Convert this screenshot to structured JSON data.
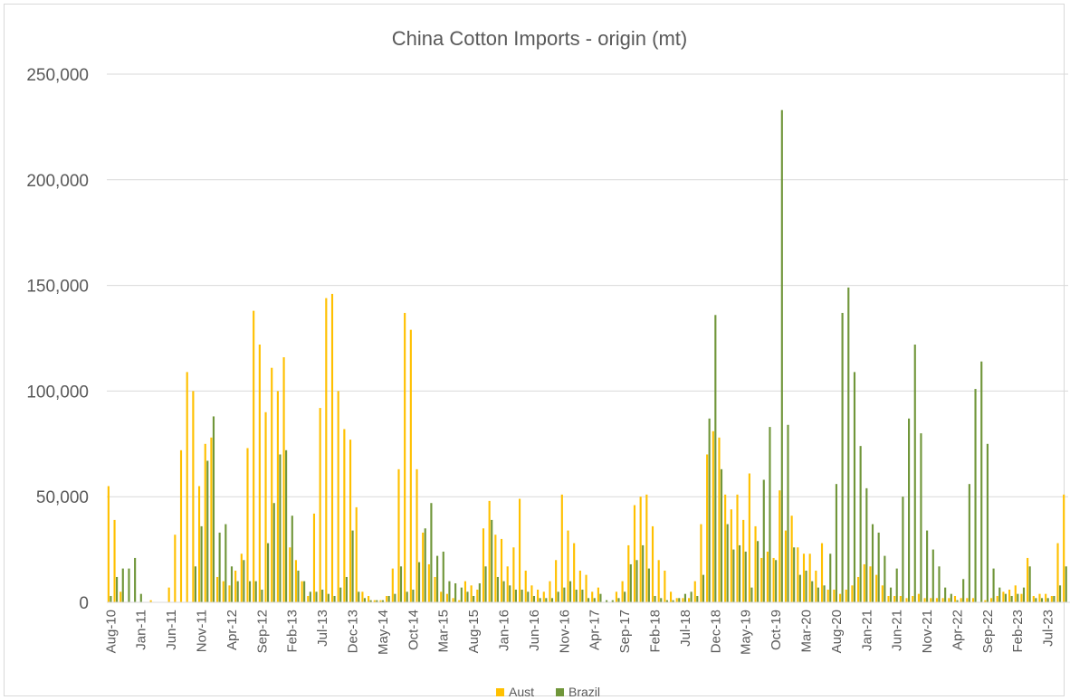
{
  "chart_data": {
    "type": "bar",
    "title": "China Cotton Imports - origin (mt)",
    "xlabel": "",
    "ylabel": "",
    "ylim": [
      0,
      250000
    ],
    "y_ticks": [
      0,
      50000,
      100000,
      150000,
      200000,
      250000
    ],
    "y_tick_labels": [
      "0",
      "50,000",
      "100,000",
      "150,000",
      "200,000",
      "250,000"
    ],
    "grid": true,
    "legend_position": "bottom",
    "start_month": "Aug-10",
    "end_month": "Jul-23",
    "x_tick_labels": [
      "Aug-10",
      "Jan-11",
      "Jun-11",
      "Nov-11",
      "Apr-12",
      "Sep-12",
      "Feb-13",
      "Jul-13",
      "Dec-13",
      "May-14",
      "Oct-14",
      "Mar-15",
      "Aug-15",
      "Jan-16",
      "Jun-16",
      "Nov-16",
      "Apr-17",
      "Sep-17",
      "Feb-18",
      "Jul-18",
      "Dec-18",
      "May-19",
      "Oct-19",
      "Mar-20",
      "Aug-20",
      "Jan-21",
      "Jun-21",
      "Nov-21",
      "Apr-22",
      "Sep-22",
      "Feb-23",
      "Jul-23"
    ],
    "series": [
      {
        "name": "Aust",
        "color": "#FFC000",
        "values": [
          55000,
          39000,
          5000,
          0,
          0,
          0,
          0,
          1000,
          0,
          0,
          7000,
          32000,
          72000,
          109000,
          100000,
          55000,
          75000,
          78000,
          12000,
          10000,
          8000,
          15000,
          23000,
          73000,
          138000,
          122000,
          90000,
          111000,
          100000,
          116000,
          26000,
          20000,
          10000,
          3000,
          42000,
          92000,
          144000,
          146000,
          100000,
          82000,
          77000,
          45000,
          5000,
          3000,
          1000,
          1000,
          3000,
          16000,
          63000,
          137000,
          129000,
          63000,
          33000,
          18000,
          12000,
          5000,
          4000,
          2000,
          1000,
          10000,
          8000,
          6000,
          35000,
          48000,
          32000,
          30000,
          17000,
          26000,
          49000,
          15000,
          8000,
          6000,
          5000,
          10000,
          20000,
          51000,
          34000,
          28000,
          15000,
          13000,
          5000,
          7000,
          0,
          0,
          5000,
          10000,
          27000,
          46000,
          50000,
          51000,
          36000,
          20000,
          15000,
          5000,
          2000,
          2000,
          2000,
          10000,
          37000,
          70000,
          81000,
          78000,
          51000,
          44000,
          51000,
          39000,
          61000,
          36000,
          21000,
          24000,
          21000,
          53000,
          34000,
          41000,
          26000,
          23000,
          23000,
          15000,
          28000,
          6000,
          6000,
          4000,
          6000,
          8000,
          12000,
          18000,
          17000,
          13000,
          8000,
          3000,
          3000,
          3000,
          2000,
          3000,
          4000,
          2000,
          2000,
          2000,
          2000,
          2000,
          3000,
          2000,
          2000,
          2000,
          0,
          1000,
          2000,
          3000,
          5000,
          6000,
          8000,
          4000,
          21000,
          3000,
          4000,
          4000,
          3000,
          28000,
          51000
        ]
      },
      {
        "name": "Brazil",
        "color": "#70963A",
        "values": [
          3000,
          12000,
          16000,
          16000,
          21000,
          4000,
          0,
          0,
          0,
          0,
          0,
          0,
          0,
          0,
          17000,
          36000,
          67000,
          88000,
          33000,
          37000,
          17000,
          10000,
          20000,
          10000,
          10000,
          6000,
          28000,
          47000,
          70000,
          72000,
          41000,
          15000,
          10000,
          5000,
          5000,
          6000,
          4000,
          3000,
          7000,
          12000,
          34000,
          5000,
          2000,
          1000,
          1000,
          1000,
          3000,
          4000,
          17000,
          5000,
          6000,
          19000,
          35000,
          47000,
          22000,
          24000,
          10000,
          9000,
          7000,
          5000,
          3000,
          9000,
          17000,
          39000,
          12000,
          10000,
          8000,
          6000,
          6000,
          5000,
          3000,
          2000,
          2000,
          2000,
          5000,
          7000,
          10000,
          6000,
          6000,
          2000,
          2000,
          4000,
          1000,
          1000,
          2000,
          5000,
          18000,
          20000,
          27000,
          16000,
          3000,
          2000,
          1000,
          1000,
          2000,
          4000,
          5000,
          3000,
          13000,
          87000,
          136000,
          63000,
          37000,
          25000,
          27000,
          24000,
          7000,
          29000,
          58000,
          83000,
          20000,
          233000,
          84000,
          26000,
          13000,
          15000,
          10000,
          7000,
          8000,
          23000,
          56000,
          137000,
          149000,
          109000,
          74000,
          54000,
          37000,
          33000,
          22000,
          7000,
          16000,
          50000,
          87000,
          122000,
          80000,
          34000,
          25000,
          17000,
          7000,
          4000,
          1000,
          11000,
          56000,
          101000,
          114000,
          75000,
          16000,
          7000,
          4000,
          3000,
          4000,
          7000,
          17000,
          2000,
          2000,
          2000,
          3000,
          8000,
          17000
        ]
      }
    ]
  }
}
